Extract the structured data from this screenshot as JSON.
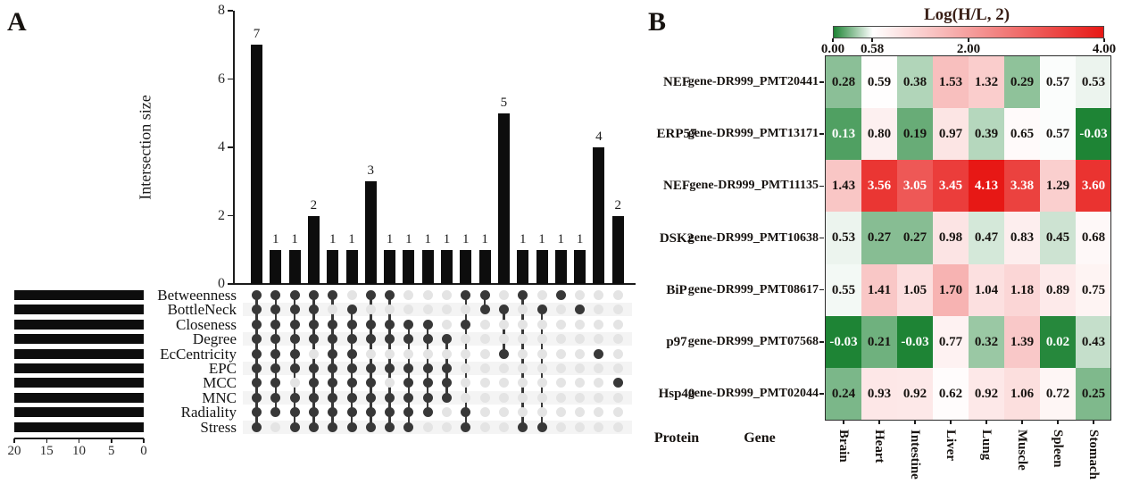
{
  "chart_data": [
    {
      "type": "bar",
      "subtype": "upset",
      "panel_label": "A",
      "ylabel": "Intersection size",
      "ylim": [
        0,
        8
      ],
      "y_ticks": [
        0,
        2,
        4,
        6,
        8
      ],
      "grid": false,
      "categories": [
        "Betweenness",
        "BottleNeck",
        "Closeness",
        "Degree",
        "EcCentricity",
        "EPC",
        "MCC",
        "MNC",
        "Radiality",
        "Stress"
      ],
      "set_sizes": [
        20,
        20,
        20,
        20,
        20,
        20,
        20,
        20,
        20,
        20
      ],
      "set_size_axis_ticks": [
        20,
        15,
        10,
        5,
        0
      ],
      "intersections": [
        {
          "size": 7,
          "sets": [
            0,
            1,
            2,
            3,
            4,
            5,
            6,
            7,
            8,
            9
          ]
        },
        {
          "size": 1,
          "sets": [
            0,
            1,
            2,
            3,
            4,
            5,
            6,
            7,
            8
          ]
        },
        {
          "size": 1,
          "sets": [
            0,
            1,
            2,
            3,
            4,
            5,
            7,
            8,
            9
          ]
        },
        {
          "size": 2,
          "sets": [
            0,
            1,
            2,
            3,
            5,
            6,
            7,
            8,
            9
          ]
        },
        {
          "size": 1,
          "sets": [
            0,
            2,
            3,
            4,
            5,
            6,
            7,
            8,
            9
          ]
        },
        {
          "size": 1,
          "sets": [
            1,
            2,
            3,
            4,
            5,
            6,
            7,
            8,
            9
          ]
        },
        {
          "size": 3,
          "sets": [
            0,
            2,
            3,
            5,
            6,
            7,
            8,
            9
          ]
        },
        {
          "size": 1,
          "sets": [
            0,
            2,
            3,
            5,
            7,
            8,
            9
          ]
        },
        {
          "size": 1,
          "sets": [
            2,
            3,
            5,
            6,
            7,
            8,
            9
          ]
        },
        {
          "size": 1,
          "sets": [
            2,
            3,
            5,
            6,
            7,
            8
          ]
        },
        {
          "size": 1,
          "sets": [
            3,
            5,
            6,
            7
          ]
        },
        {
          "size": 1,
          "sets": [
            0,
            2,
            8,
            9
          ]
        },
        {
          "size": 1,
          "sets": [
            0,
            1
          ]
        },
        {
          "size": 5,
          "sets": [
            1,
            4
          ]
        },
        {
          "size": 1,
          "sets": [
            0,
            9
          ]
        },
        {
          "size": 1,
          "sets": [
            1,
            9
          ]
        },
        {
          "size": 1,
          "sets": [
            0
          ]
        },
        {
          "size": 1,
          "sets": [
            1
          ]
        },
        {
          "size": 4,
          "sets": [
            4
          ]
        },
        {
          "size": 2,
          "sets": [
            6
          ]
        }
      ]
    },
    {
      "type": "heatmap",
      "panel_label": "B",
      "title": "Log(H/L, 2)",
      "legend_tick_labels": [
        "0.00",
        "0.58",
        "2.00",
        "4.00"
      ],
      "legend_tick_values": [
        0,
        0.58,
        2,
        4
      ],
      "scale": {
        "min": 0,
        "white_point": 0.58,
        "max": 4
      },
      "colors": {
        "low": "#1e8435",
        "mid": "#ffffff",
        "high": "#e71815"
      },
      "protein_header": "Protein",
      "gene_header": "Gene",
      "columns": [
        "Brain",
        "Heart",
        "Intestine",
        "Liver",
        "Lung",
        "Muscle",
        "Spleen",
        "Stomach"
      ],
      "rows": [
        {
          "protein": "NEF",
          "gene": "gene-DR999_PMT20441",
          "values": [
            0.28,
            0.59,
            0.38,
            1.53,
            1.32,
            0.29,
            0.57,
            0.53
          ]
        },
        {
          "protein": "ERP57",
          "gene": "gene-DR999_PMT13171",
          "values": [
            0.13,
            0.8,
            0.19,
            0.97,
            0.39,
            0.65,
            0.57,
            -0.03
          ]
        },
        {
          "protein": "NEF",
          "gene": "gene-DR999_PMT11135",
          "values": [
            1.43,
            3.56,
            3.05,
            3.45,
            4.13,
            3.38,
            1.29,
            3.6
          ]
        },
        {
          "protein": "DSK2",
          "gene": "gene-DR999_PMT10638",
          "values": [
            0.53,
            0.27,
            0.27,
            0.98,
            0.47,
            0.83,
            0.45,
            0.68
          ]
        },
        {
          "protein": "BiP",
          "gene": "gene-DR999_PMT08617",
          "values": [
            0.55,
            1.41,
            1.05,
            1.7,
            1.04,
            1.18,
            0.89,
            0.75
          ]
        },
        {
          "protein": "p97",
          "gene": "gene-DR999_PMT07568",
          "values": [
            -0.03,
            0.21,
            -0.03,
            0.77,
            0.32,
            1.39,
            0.02,
            0.43
          ]
        },
        {
          "protein": "Hsp40",
          "gene": "gene-DR999_PMT02044",
          "values": [
            0.24,
            0.93,
            0.92,
            0.62,
            0.92,
            1.06,
            0.72,
            0.25
          ]
        }
      ]
    }
  ]
}
